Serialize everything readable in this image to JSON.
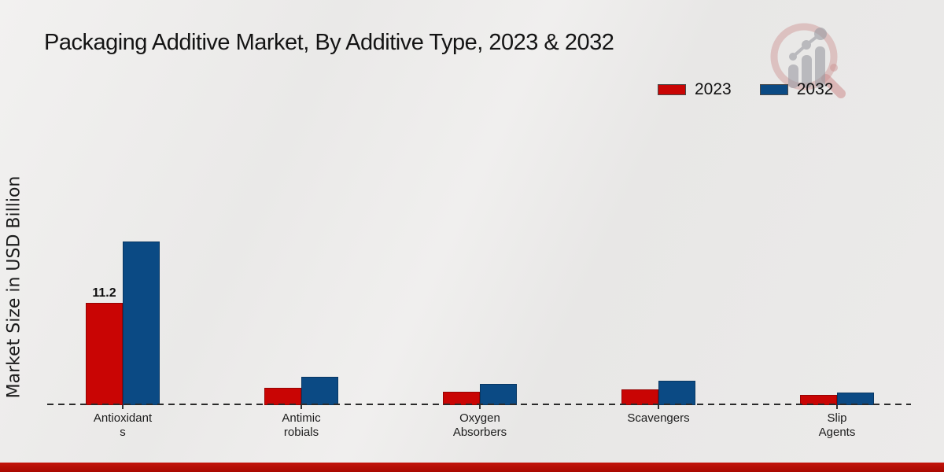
{
  "title": "Packaging Additive Market, By Additive Type, 2023 & 2032",
  "y_axis_label": "Market Size in USD Billion",
  "legend": {
    "items": [
      {
        "label": "2023",
        "color": "#c90504"
      },
      {
        "label": "2032",
        "color": "#0b4a84"
      }
    ]
  },
  "watermark_icon": "magnifier-growth-chart-logo",
  "colors": {
    "series_2023": "#c90504",
    "series_2032": "#0b4a84",
    "footer_accent": "#b00b04",
    "background": "#eae9e8",
    "axis_line": "#2b2b2b"
  },
  "chart_data": {
    "type": "bar",
    "title": "Packaging Additive Market, By Additive Type, 2023 & 2032",
    "xlabel": "",
    "ylabel": "Market Size in USD Billion",
    "categories": [
      "Antioxidants",
      "Antimicrobials",
      "Oxygen Absorbers",
      "Scavengers",
      "Slip Agents"
    ],
    "category_label_lines": [
      [
        "Antioxidant",
        "s"
      ],
      [
        "Antimic",
        "robials"
      ],
      [
        "Oxygen",
        "Absorbers"
      ],
      [
        "Scavengers"
      ],
      [
        "Slip",
        "Agents"
      ]
    ],
    "series": [
      {
        "name": "2023",
        "color": "#c90504",
        "values": [
          11.2,
          1.9,
          1.5,
          1.75,
          1.1
        ]
      },
      {
        "name": "2032",
        "color": "#0b4a84",
        "values": [
          17.9,
          3.1,
          2.3,
          2.7,
          1.4
        ]
      }
    ],
    "data_labels": [
      {
        "category": "Antioxidants",
        "series": "2023",
        "text": "11.2"
      }
    ],
    "ylim": [
      0,
      19.5
    ],
    "grid": false,
    "legend_position": "top-right",
    "baseline_style": "dashed",
    "y_axis_ticks_visible": false
  }
}
